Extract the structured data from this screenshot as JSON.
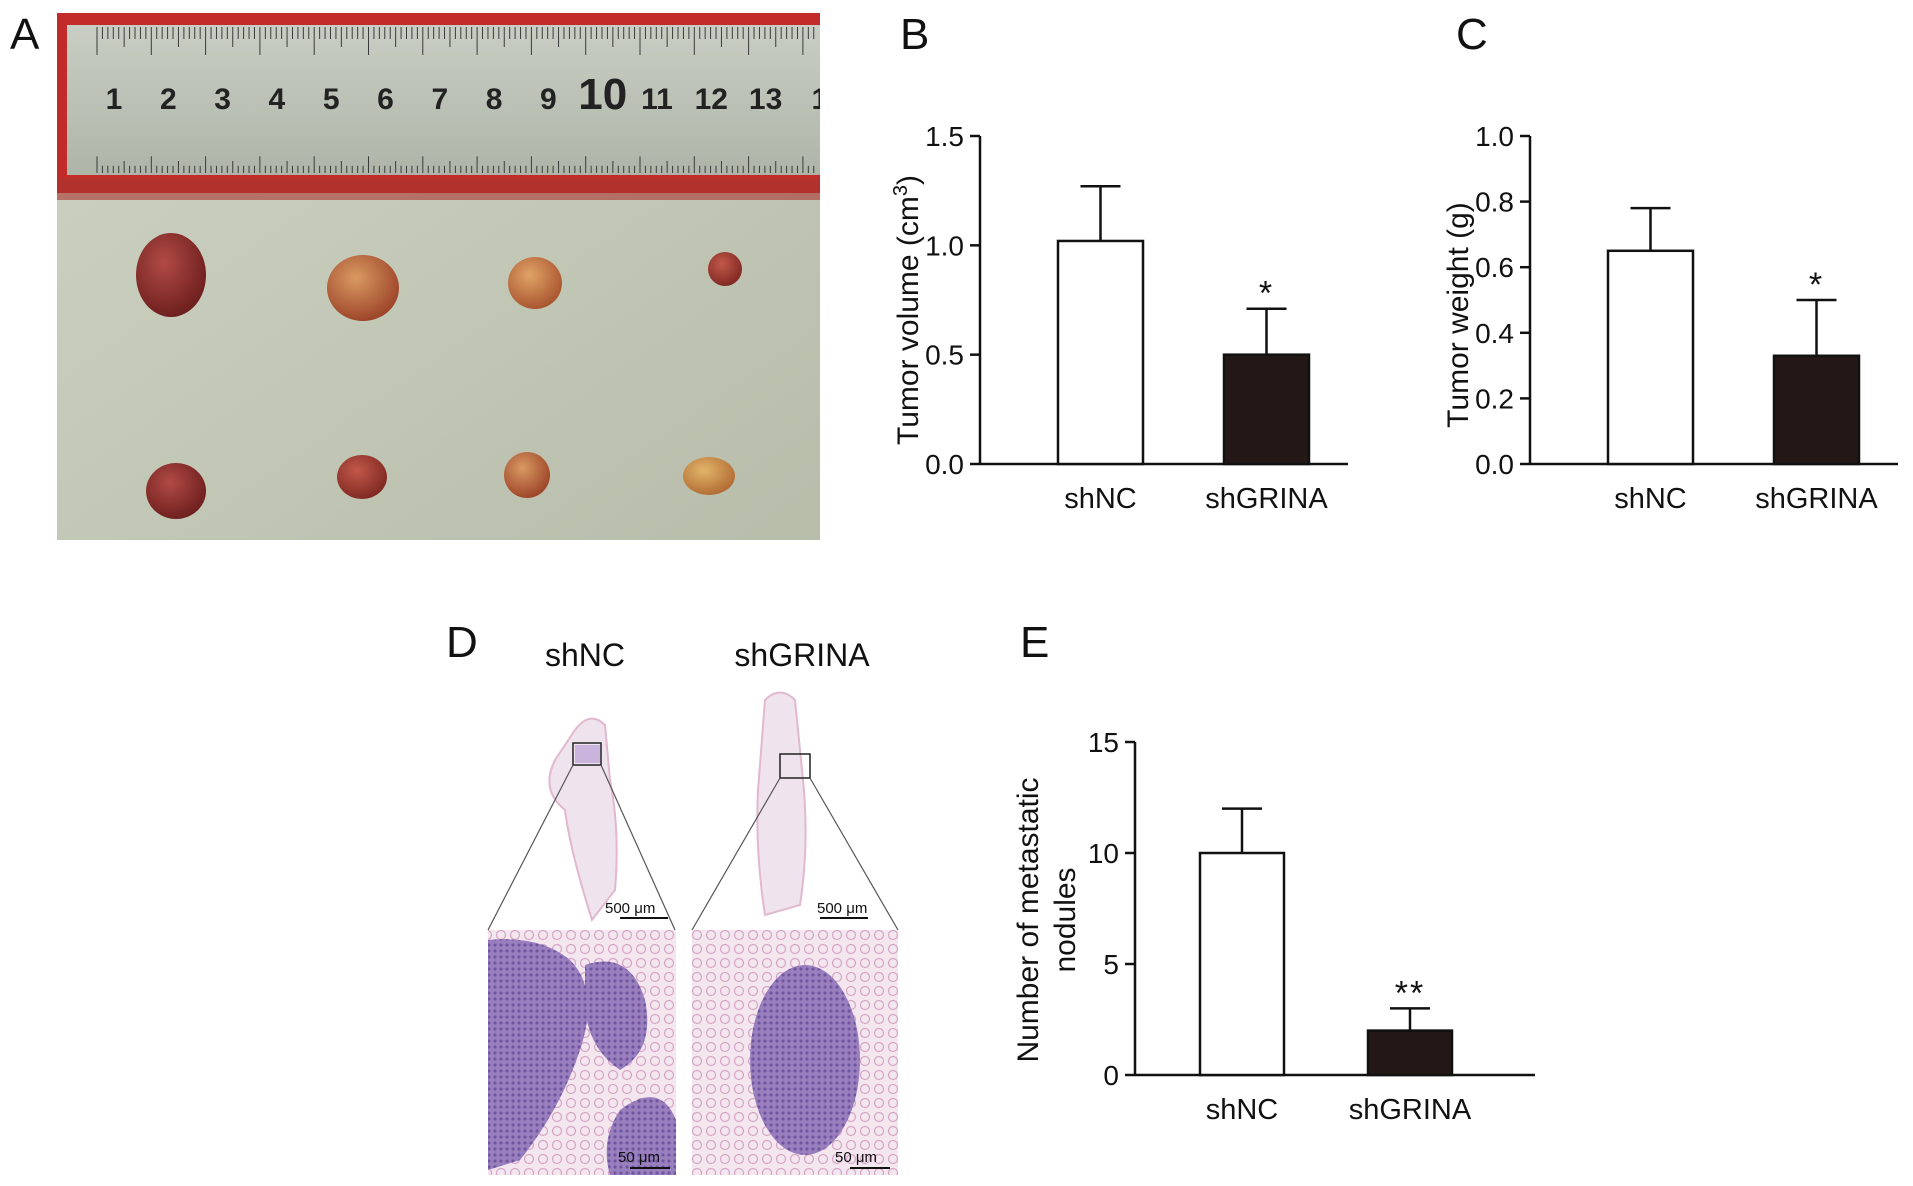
{
  "panels": {
    "a": "A",
    "b": "B",
    "c": "C",
    "d": "D",
    "e": "E"
  },
  "ruler_numbers": [
    "1",
    "2",
    "3",
    "4",
    "5",
    "6",
    "7",
    "8",
    "9",
    "10",
    "11",
    "12",
    "13",
    "1"
  ],
  "histology": {
    "col_left": "shNC",
    "col_right": "shGRINA",
    "scale_top_left": "500 μm",
    "scale_top_right": "500 μm",
    "scale_bottom_left": "50 μm",
    "scale_bottom_right": "50 μm"
  },
  "colors": {
    "bar_white": "#ffffff",
    "bar_dark": "#231815",
    "axis": "#111111"
  },
  "chart_data": [
    {
      "id": "B",
      "type": "bar",
      "categories": [
        "shNC",
        "shGRINA"
      ],
      "values": [
        1.02,
        0.5
      ],
      "error": [
        0.25,
        0.21
      ],
      "significance": [
        "",
        "*"
      ],
      "ylabel_main": "Tumor volume (cm",
      "ylabel_sup": "3",
      "ylabel_end": ")",
      "ylim": [
        0,
        1.5
      ],
      "yticks": [
        "0.0",
        "0.5",
        "1.0",
        "1.5"
      ],
      "ytick_values": [
        0,
        0.5,
        1.0,
        1.5
      ]
    },
    {
      "id": "C",
      "type": "bar",
      "categories": [
        "shNC",
        "shGRINA"
      ],
      "values": [
        0.65,
        0.33
      ],
      "error": [
        0.13,
        0.17
      ],
      "significance": [
        "",
        "*"
      ],
      "ylabel": "Tumor weight (g)",
      "ylim": [
        0,
        1.0
      ],
      "yticks": [
        "0.0",
        "0.2",
        "0.4",
        "0.6",
        "0.8",
        "1.0"
      ],
      "ytick_values": [
        0,
        0.2,
        0.4,
        0.6,
        0.8,
        1.0
      ]
    },
    {
      "id": "E",
      "type": "bar",
      "categories": [
        "shNC",
        "shGRINA"
      ],
      "values": [
        10,
        2
      ],
      "error": [
        2,
        1
      ],
      "significance": [
        "",
        "**"
      ],
      "ylabel_line1": "Number of metastatic",
      "ylabel_line2": "nodules",
      "ylim": [
        0,
        15
      ],
      "yticks": [
        "0",
        "5",
        "10",
        "15"
      ],
      "ytick_values": [
        0,
        5,
        10,
        15
      ]
    }
  ]
}
